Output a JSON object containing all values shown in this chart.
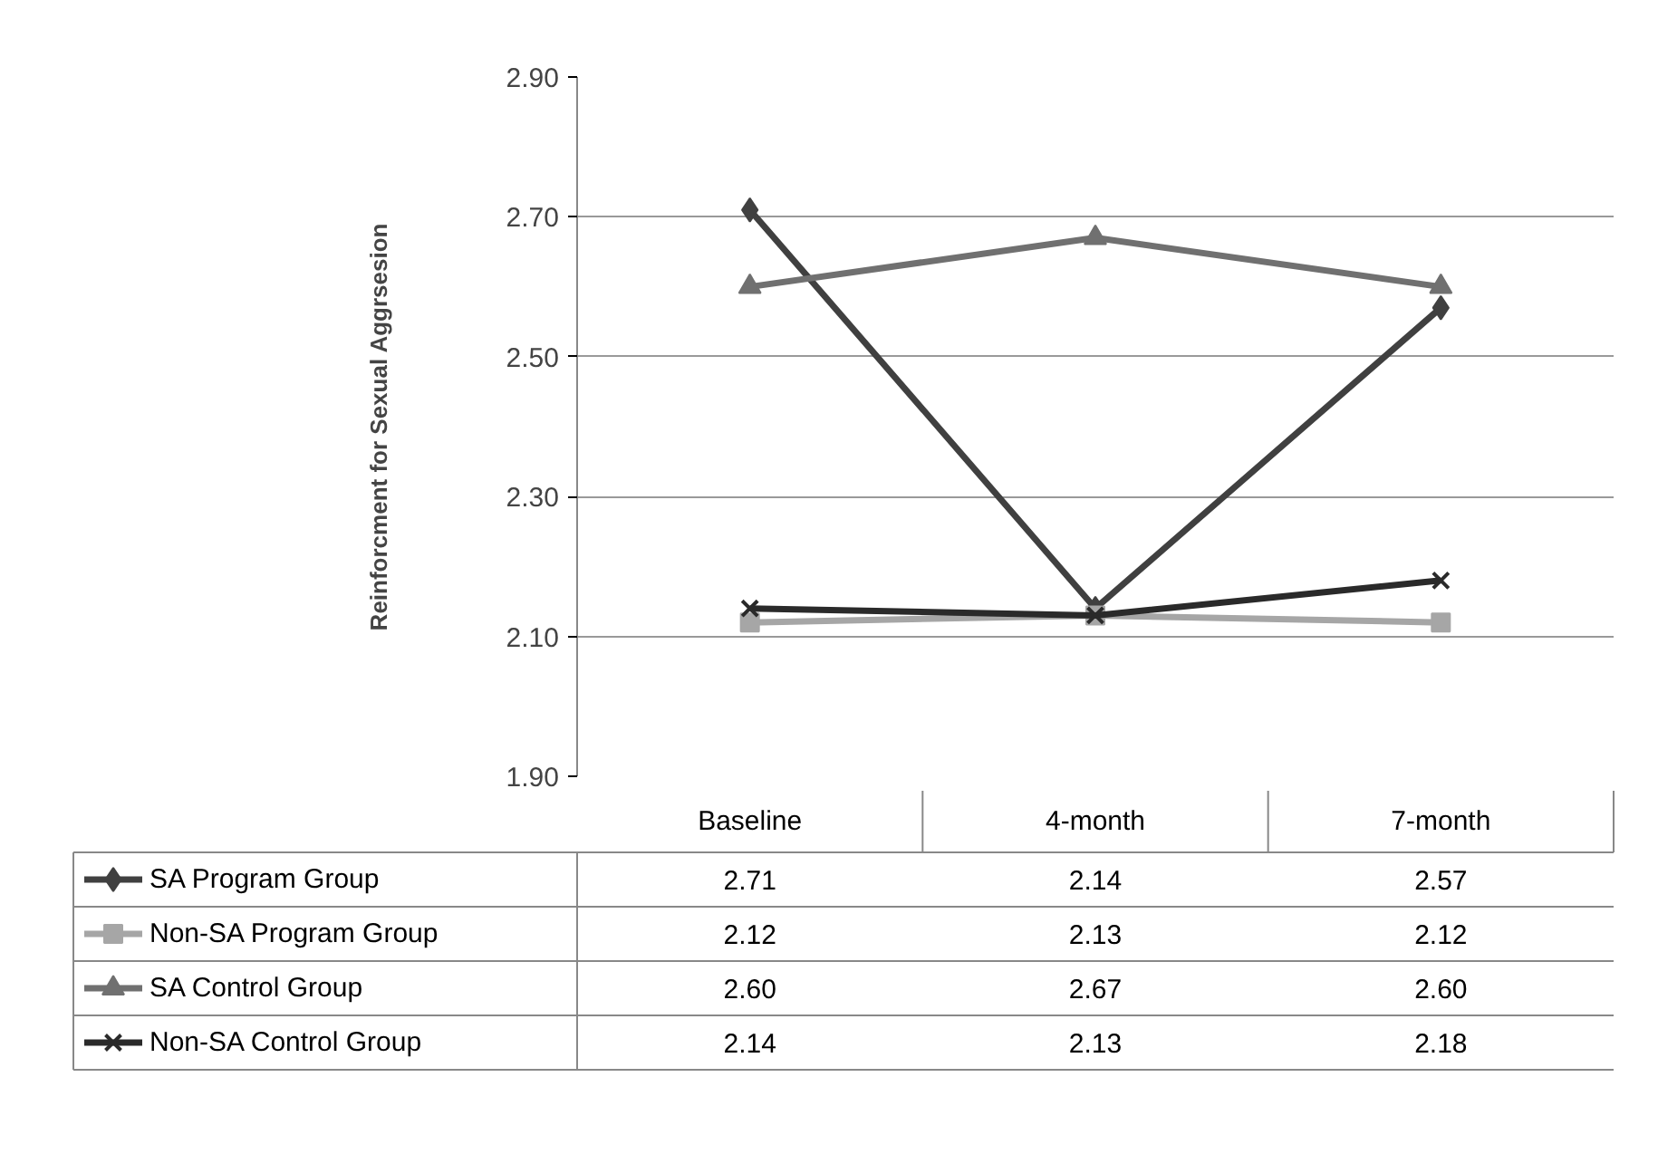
{
  "chart_data": {
    "type": "line",
    "ylabel": "Reinforcment for Sexual Aggrsesion",
    "categories": [
      "Baseline",
      "4-month",
      "7-month"
    ],
    "series": [
      {
        "name": "SA Program Group",
        "color": "#404040",
        "marker": "diamond",
        "values": [
          2.71,
          2.14,
          2.57
        ],
        "value_labels": [
          "2.71",
          "2.14",
          "2.57"
        ]
      },
      {
        "name": "Non-SA Program Group",
        "color": "#a6a6a6",
        "marker": "square",
        "values": [
          2.12,
          2.13,
          2.12
        ],
        "value_labels": [
          "2.12",
          "2.13",
          "2.12"
        ]
      },
      {
        "name": "SA Control Group",
        "color": "#707070",
        "marker": "triangle",
        "values": [
          2.6,
          2.67,
          2.6
        ],
        "value_labels": [
          "2.60",
          "2.67",
          "2.60"
        ]
      },
      {
        "name": "Non-SA Control Group",
        "color": "#2a2a2a",
        "marker": "cross",
        "values": [
          2.14,
          2.13,
          2.18
        ],
        "value_labels": [
          "2.14",
          "2.13",
          "2.18"
        ]
      }
    ],
    "ylim": [
      1.9,
      2.9
    ],
    "yticks": [
      {
        "value": 1.9,
        "label": "1.90"
      },
      {
        "value": 2.1,
        "label": "2.10"
      },
      {
        "value": 2.3,
        "label": "2.30"
      },
      {
        "value": 2.5,
        "label": "2.50"
      },
      {
        "value": 2.7,
        "label": "2.70"
      },
      {
        "value": 2.9,
        "label": "2.90"
      }
    ],
    "grid": "y",
    "legend": "bottom",
    "line_style": "solid"
  }
}
